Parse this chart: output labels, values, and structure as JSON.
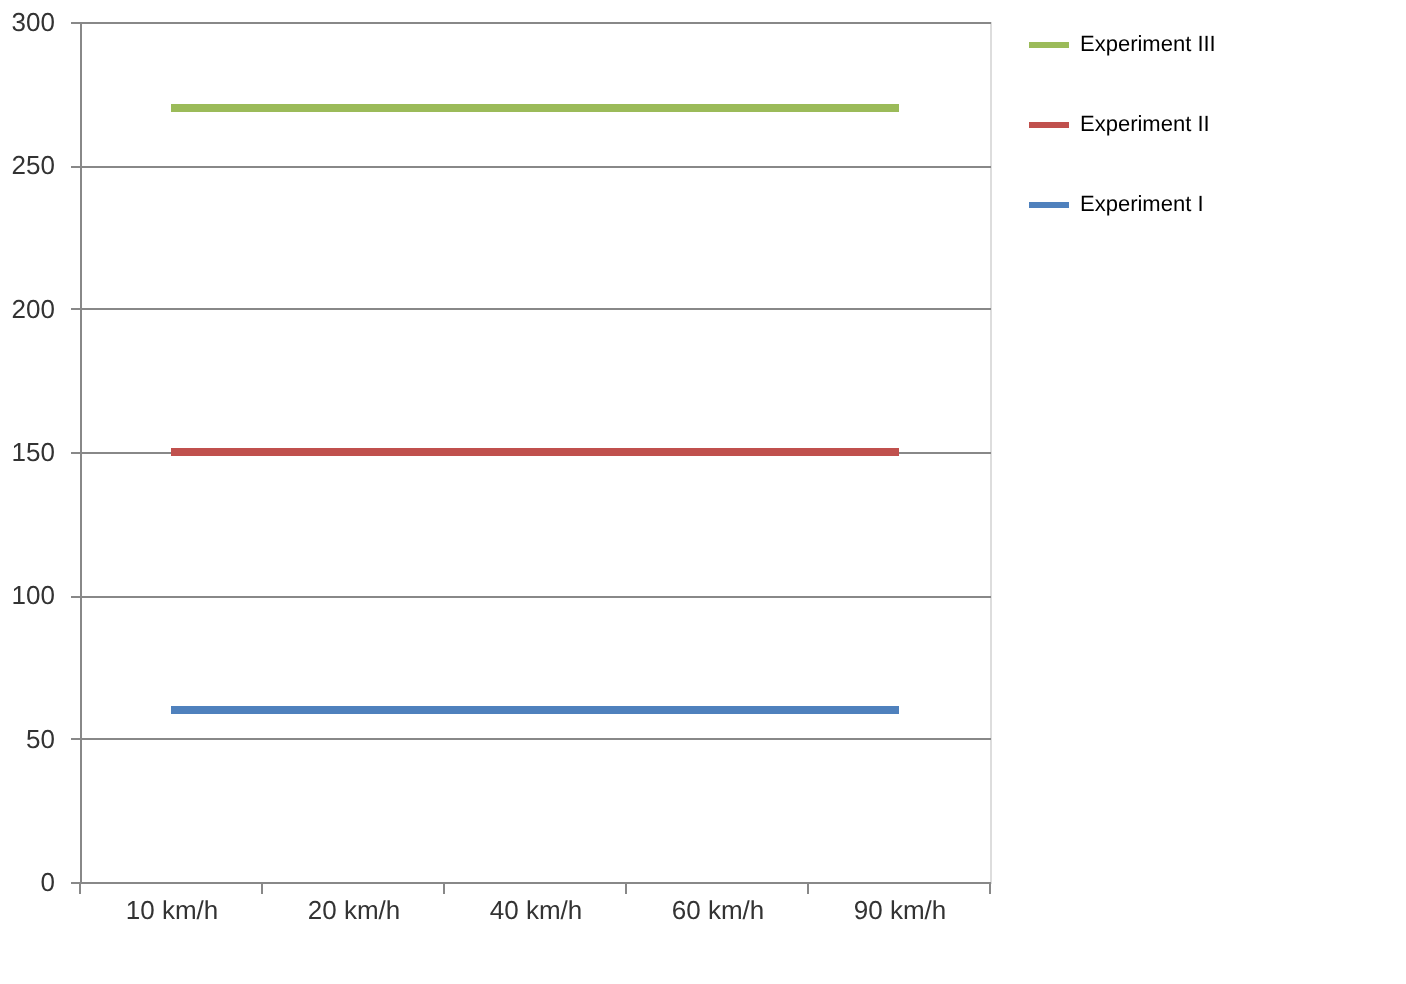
{
  "chart_data": {
    "type": "line",
    "categories": [
      "10 km/h",
      "20 km/h",
      "40 km/h",
      "60 km/h",
      "90 km/h"
    ],
    "series": [
      {
        "name": "Experiment III",
        "color": "#9bbb59",
        "values": [
          270,
          270,
          270,
          270,
          270
        ]
      },
      {
        "name": "Experiment II",
        "color": "#c0504d",
        "values": [
          150,
          150,
          150,
          150,
          150
        ]
      },
      {
        "name": "Experiment I",
        "color": "#4f81bd",
        "values": [
          60,
          60,
          60,
          60,
          60
        ]
      }
    ],
    "ylim": [
      0,
      300
    ],
    "yticks": [
      0,
      50,
      100,
      150,
      200,
      250,
      300
    ],
    "grid": "y",
    "legend": "right",
    "marker": "none",
    "line_style": "solid"
  }
}
